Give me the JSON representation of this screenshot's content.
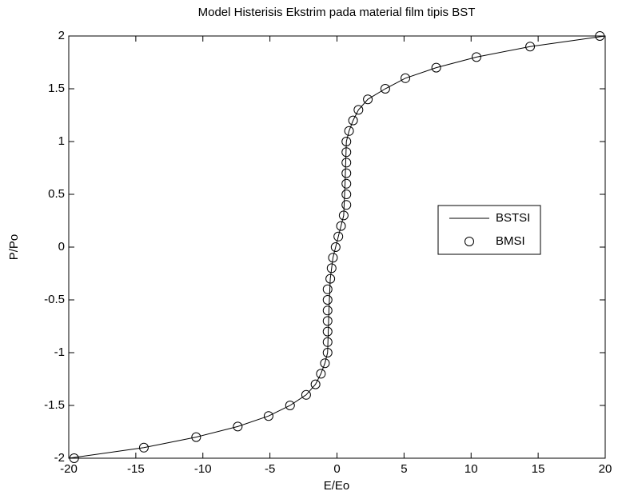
{
  "chart_data": {
    "type": "line",
    "title": "Model Histerisis Ekstrim pada material film tipis BST",
    "xlabel": "E/Eo",
    "ylabel": "P/Po",
    "xlim": [
      -20,
      20
    ],
    "ylim": [
      -2,
      2
    ],
    "xticks": [
      -20,
      -15,
      -10,
      -5,
      0,
      5,
      10,
      15,
      20
    ],
    "yticks": [
      -2,
      -1.5,
      -1,
      -0.5,
      0,
      0.5,
      1,
      1.5,
      2
    ],
    "legend": "right",
    "series": [
      {
        "name": "BSTSI",
        "style": "line",
        "color": "#000000",
        "x": [
          -20,
          -14.4,
          -10.5,
          -7.4,
          -5.1,
          -3.5,
          -2.3,
          -1.6,
          -1.2,
          -0.9,
          -0.7,
          -0.6,
          -0.5,
          -0.4,
          -0.3,
          -0.1,
          0.1,
          0.3,
          0.5,
          0.6,
          0.7,
          0.7,
          0.9,
          1.2,
          1.6,
          2.3,
          3.6,
          5.1,
          7.4,
          10.4,
          14.4,
          20
        ],
        "values": [
          -2,
          -1.9,
          -1.8,
          -1.7,
          -1.6,
          -1.5,
          -1.4,
          -1.3,
          -1.2,
          -1.1,
          -1.0,
          -0.6,
          -0.3,
          -0.2,
          -0.1,
          0,
          0.1,
          0.2,
          0.3,
          0.6,
          1.0,
          1.0,
          1.1,
          1.2,
          1.3,
          1.4,
          1.5,
          1.6,
          1.7,
          1.8,
          1.9,
          2
        ]
      },
      {
        "name": "BMSI",
        "style": "markers",
        "color": "#000000",
        "x": [
          -19.6,
          -14.4,
          -10.5,
          -7.4,
          -5.1,
          -3.5,
          -2.3,
          -1.6,
          -1.2,
          -0.9,
          -0.7,
          -0.7,
          -0.7,
          -0.7,
          -0.7,
          -0.7,
          -0.7,
          -0.5,
          -0.4,
          -0.3,
          -0.1,
          0.1,
          0.3,
          0.5,
          0.7,
          0.7,
          0.7,
          0.7,
          0.7,
          0.7,
          0.7,
          0.9,
          1.2,
          1.6,
          2.3,
          3.6,
          5.1,
          7.4,
          10.4,
          14.4,
          19.6
        ],
        "values": [
          -2,
          -1.9,
          -1.8,
          -1.7,
          -1.6,
          -1.5,
          -1.4,
          -1.3,
          -1.2,
          -1.1,
          -1.0,
          -0.9,
          -0.8,
          -0.7,
          -0.6,
          -0.5,
          -0.4,
          -0.3,
          -0.2,
          -0.1,
          0,
          0.1,
          0.2,
          0.3,
          0.4,
          0.5,
          0.6,
          0.7,
          0.8,
          0.9,
          1.0,
          1.1,
          1.2,
          1.3,
          1.4,
          1.5,
          1.6,
          1.7,
          1.8,
          1.9,
          2
        ]
      }
    ]
  }
}
